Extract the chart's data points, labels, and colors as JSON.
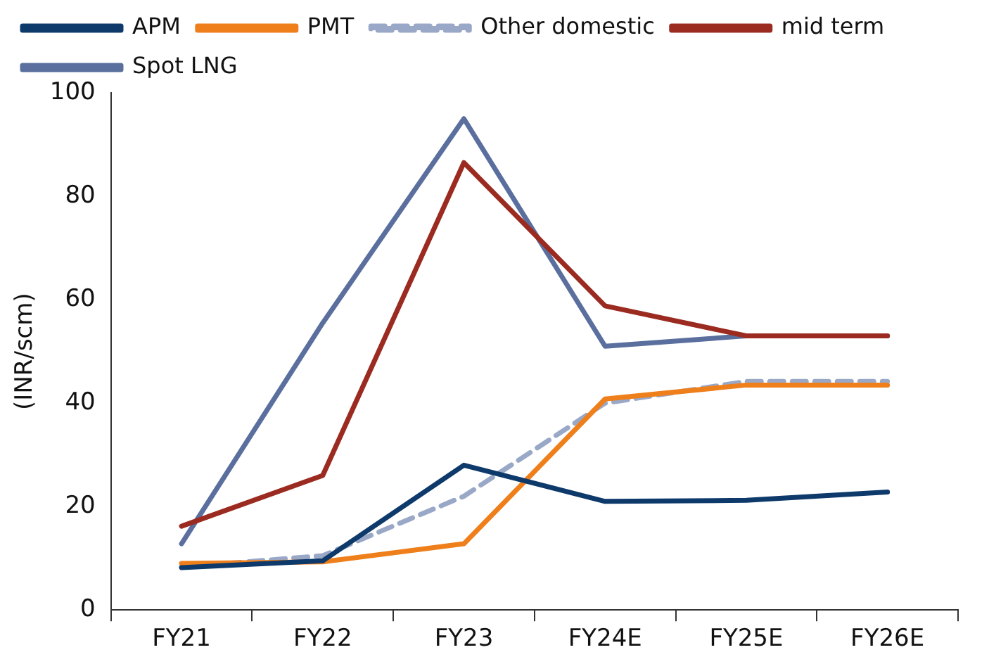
{
  "chart_data": {
    "type": "line",
    "ylabel": "(INR/scm)",
    "categories": [
      "FY21",
      "FY22",
      "FY23",
      "FY24E",
      "FY25E",
      "FY26E"
    ],
    "ylim": [
      0,
      100
    ],
    "yticks": [
      0,
      20,
      40,
      60,
      80,
      100
    ],
    "grid": false,
    "legend": "top",
    "marker": "none",
    "series": [
      {
        "name": "APM",
        "color": "#0e3a6b",
        "values": [
          8.2,
          9.5,
          28,
          21,
          21.2,
          22.8
        ],
        "line_style": "solid"
      },
      {
        "name": "PMT",
        "color": "#ee7f1b",
        "values": [
          9,
          9.3,
          12.8,
          40.8,
          43.5,
          43.5
        ],
        "line_style": "solid"
      },
      {
        "name": "Other domestic",
        "color": "#9aa8c8",
        "values": [
          8.3,
          10.5,
          22,
          40,
          44.2,
          44.2
        ],
        "line_style": "dashed"
      },
      {
        "name": "mid term",
        "color": "#9b2b20",
        "values": [
          16.2,
          26,
          86.5,
          58.8,
          53,
          53
        ],
        "line_style": "solid"
      },
      {
        "name": "Spot LNG",
        "color": "#5a6f9e",
        "values": [
          12.8,
          55.5,
          95,
          51,
          53,
          53
        ],
        "line_style": "solid"
      }
    ]
  }
}
